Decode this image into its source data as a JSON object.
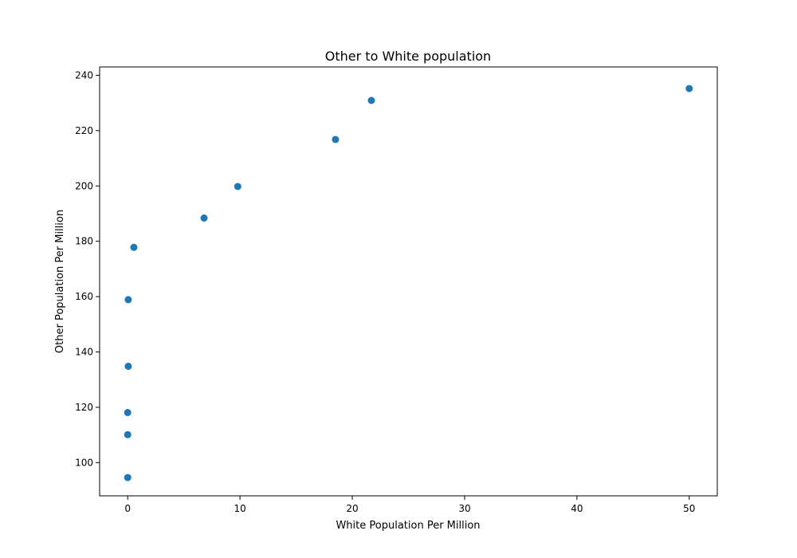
{
  "chart_data": {
    "type": "scatter",
    "title": "Other to White population",
    "xlabel": "White Population Per Million",
    "ylabel": "Other Population Per Million",
    "xlim": [
      -2.5,
      52.5
    ],
    "ylim": [
      88,
      243
    ],
    "xticks": [
      0,
      10,
      20,
      30,
      40,
      50
    ],
    "yticks": [
      100,
      120,
      140,
      160,
      180,
      200,
      220,
      240
    ],
    "grid": false,
    "legend": "none",
    "series": [
      {
        "color": "#1f77b4",
        "points": [
          {
            "x": 0.0,
            "y": 94.6
          },
          {
            "x": 0.0,
            "y": 110.1
          },
          {
            "x": 0.0,
            "y": 118.1
          },
          {
            "x": 0.05,
            "y": 134.8
          },
          {
            "x": 0.05,
            "y": 158.9
          },
          {
            "x": 0.55,
            "y": 177.8
          },
          {
            "x": 6.8,
            "y": 188.4
          },
          {
            "x": 9.8,
            "y": 199.8
          },
          {
            "x": 18.5,
            "y": 216.8
          },
          {
            "x": 21.7,
            "y": 230.9
          },
          {
            "x": 50.0,
            "y": 235.2
          }
        ]
      }
    ]
  }
}
